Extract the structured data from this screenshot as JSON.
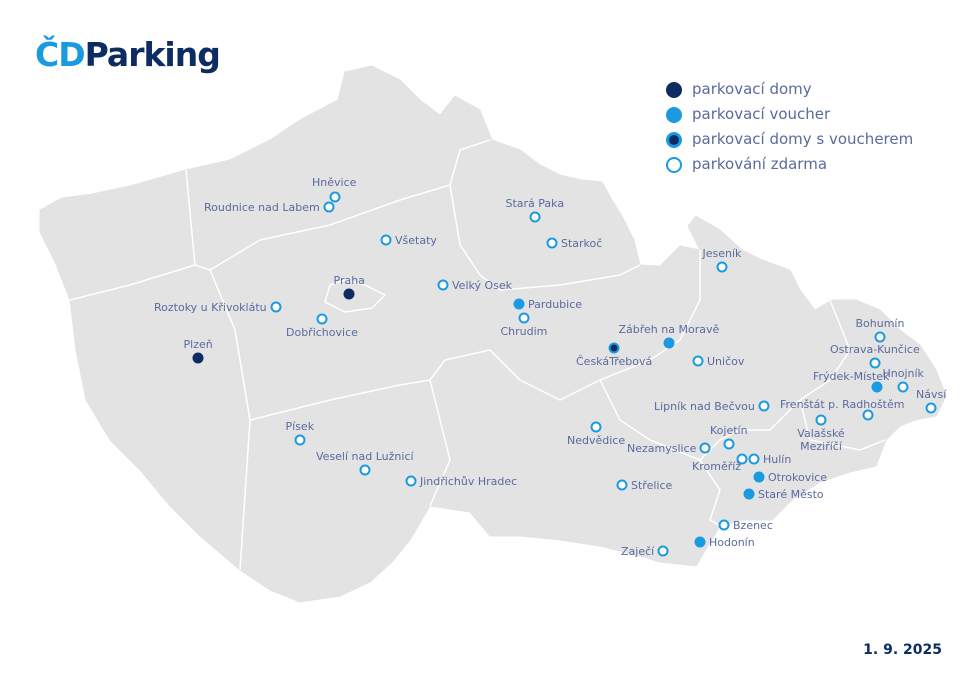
{
  "logo": {
    "cd": "ČD",
    "parking": "Parking"
  },
  "colors": {
    "navy": "#0d2d62",
    "blue": "#1a9ae0",
    "label": "#5b6a9e",
    "land": "#e3e3e3"
  },
  "legend": [
    {
      "type": "garage",
      "label": "parkovací domy"
    },
    {
      "type": "voucher",
      "label": "parkovací voucher"
    },
    {
      "type": "both",
      "label": "parkovací domy s voucherem"
    },
    {
      "type": "free",
      "label": "parkování zdarma"
    }
  ],
  "locations": [
    {
      "name": "Hněvice",
      "type": "free"
    },
    {
      "name": "Roudnice nad Labem",
      "type": "free"
    },
    {
      "name": "Všetaty",
      "type": "free"
    },
    {
      "name": "Praha",
      "type": "garage"
    },
    {
      "name": "Velký Osek",
      "type": "free"
    },
    {
      "name": "Roztoky u Křivoklátu",
      "type": "free"
    },
    {
      "name": "Dobřichovice",
      "type": "free"
    },
    {
      "name": "Plzeň",
      "type": "garage"
    },
    {
      "name": "Stará Paka",
      "type": "free"
    },
    {
      "name": "Starkoč",
      "type": "free"
    },
    {
      "name": "Pardubice",
      "type": "voucher"
    },
    {
      "name": "Chrudim",
      "type": "free"
    },
    {
      "name": "Zábřeh na Moravě",
      "type": "voucher"
    },
    {
      "name": "ČeskáTřebová",
      "type": "both"
    },
    {
      "name": "Uničov",
      "type": "free"
    },
    {
      "name": "Jeseník",
      "type": "free"
    },
    {
      "name": "Bohumín",
      "type": "free"
    },
    {
      "name": "Ostrava-Kunčice",
      "type": "free"
    },
    {
      "name": "Frýdek-Místek",
      "type": "voucher"
    },
    {
      "name": "Hnojník",
      "type": "free"
    },
    {
      "name": "Návsí",
      "type": "free"
    },
    {
      "name": "Frenštát p. Radhoštěm",
      "type": "free"
    },
    {
      "name": "Lipník nad Bečvou",
      "type": "free"
    },
    {
      "name": "Valašské Meziříčí",
      "type": "free"
    },
    {
      "name": "Nedvědice",
      "type": "free"
    },
    {
      "name": "Kojetín",
      "type": "free"
    },
    {
      "name": "Nezamyslice",
      "type": "free"
    },
    {
      "name": "Kroměříž",
      "type": "free"
    },
    {
      "name": "Hulín",
      "type": "free"
    },
    {
      "name": "Otrokovice",
      "type": "voucher"
    },
    {
      "name": "Staré Město",
      "type": "voucher"
    },
    {
      "name": "Střelice",
      "type": "free"
    },
    {
      "name": "Písek",
      "type": "free"
    },
    {
      "name": "Veselí nad Lužnicí",
      "type": "free"
    },
    {
      "name": "Jindřichův Hradec",
      "type": "free"
    },
    {
      "name": "Bzenec",
      "type": "free"
    },
    {
      "name": "Hodonín",
      "type": "voucher"
    },
    {
      "name": "Zaječí",
      "type": "free"
    }
  ],
  "date": "1. 9. 2025"
}
